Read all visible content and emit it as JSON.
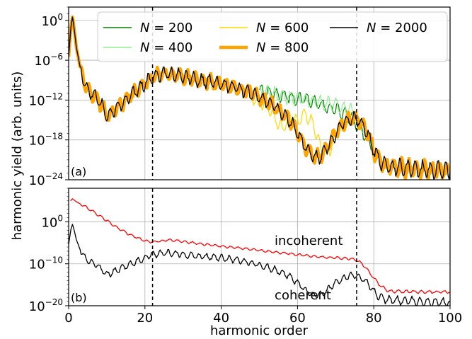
{
  "chart_data": [
    {
      "panel_label": "(a)",
      "type": "line",
      "yscale": "log",
      "xlim": [
        0,
        100
      ],
      "ylim_exponents": [
        -24,
        2
      ],
      "yticks": [
        {
          "exp": 0,
          "label": "10",
          "sup": "0"
        },
        {
          "exp": -6,
          "label": "10",
          "sup": "−6"
        },
        {
          "exp": -12,
          "label": "10",
          "sup": "−12"
        },
        {
          "exp": -18,
          "label": "10",
          "sup": "−18"
        },
        {
          "exp": -24,
          "label": "10",
          "sup": "−24"
        }
      ],
      "grid": true,
      "legend_position": "top-right",
      "vlines_x": [
        22,
        75.5
      ],
      "series": [
        {
          "name": "N = 200",
          "color": "#008000",
          "width": 1.2,
          "x": [
            50,
            54,
            58,
            62,
            66,
            70,
            74,
            78,
            80
          ],
          "log10_y": [
            -10.5,
            -11.0,
            -11.6,
            -11.8,
            -12.6,
            -13.5,
            -14.5,
            -17.5,
            -19.5
          ]
        },
        {
          "name": "N = 400",
          "color": "#90ee90",
          "width": 1.2,
          "x": [
            50,
            54,
            58,
            62,
            66,
            70,
            74,
            78
          ],
          "log10_y": [
            -10.6,
            -11.1,
            -11.7,
            -12.0,
            -12.4,
            -12.8,
            -13.5,
            -17
          ]
        },
        {
          "name": "N = 600",
          "color": "#ffd700",
          "width": 1.2,
          "x": [
            48,
            52,
            54,
            56,
            58,
            60,
            62,
            64,
            66,
            68,
            70,
            72,
            74
          ],
          "log10_y": [
            -11.5,
            -13.0,
            -14.5,
            -16.5,
            -14.5,
            -15.5,
            -14.0,
            -15.5,
            -19.0,
            -20.0,
            -17.5,
            -15.5,
            -14.5
          ]
        },
        {
          "name": "N = 800",
          "color": "#ffa500",
          "width": 4.5,
          "x": [
            0,
            0.6,
            1.0,
            1.4,
            2.0,
            3.0,
            4.0,
            5.0,
            7.0,
            9.0,
            10.0,
            12.0,
            14.0,
            16.0,
            18.0,
            20.0,
            22.0,
            24.0,
            26.0,
            30.0,
            34.0,
            40.0,
            46.0,
            50.0,
            54.0,
            58.0,
            60.0,
            62.0,
            64.0,
            66.0,
            68.0,
            70.0,
            72.0,
            74.0,
            76.0,
            78.0,
            80.0,
            82.0,
            84.0,
            88.0,
            92.0,
            96.0,
            100.0
          ],
          "log10_y": [
            -5.5,
            -1.0,
            0.5,
            -1.0,
            -4.0,
            -7.0,
            -9.0,
            -10.5,
            -11.5,
            -13.0,
            -14.5,
            -13.5,
            -12.5,
            -11.5,
            -10.5,
            -9.5,
            -8.5,
            -8.2,
            -8.0,
            -8.5,
            -9.0,
            -9.5,
            -10.5,
            -11.5,
            -13.0,
            -15.0,
            -17.0,
            -19.0,
            -20.5,
            -20.5,
            -19.0,
            -17.0,
            -15.5,
            -14.7,
            -15.0,
            -16.5,
            -19.5,
            -21.5,
            -22.0,
            -22.3,
            -22.5,
            -22.6,
            -22.6
          ]
        },
        {
          "name": "N = 2000",
          "color": "#000000",
          "width": 1.3,
          "x": [
            0,
            0.6,
            1.0,
            1.4,
            2.0,
            3.0,
            4.0,
            5.0,
            7.0,
            9.0,
            10.0,
            12.0,
            14.0,
            16.0,
            18.0,
            20.0,
            22.0,
            24.0,
            26.0,
            30.0,
            34.0,
            40.0,
            46.0,
            50.0,
            54.0,
            58.0,
            60.0,
            62.0,
            64.0,
            66.0,
            68.0,
            70.0,
            72.0,
            74.0,
            76.0,
            78.0,
            80.0,
            82.0,
            84.0,
            88.0,
            92.0,
            96.0,
            100.0
          ],
          "log10_y": [
            -5.5,
            -1.0,
            0.5,
            -1.0,
            -4.0,
            -7.0,
            -9.0,
            -10.5,
            -11.5,
            -13.0,
            -14.5,
            -13.5,
            -12.5,
            -11.5,
            -10.5,
            -9.5,
            -8.5,
            -8.2,
            -8.0,
            -8.5,
            -9.0,
            -9.5,
            -10.5,
            -11.5,
            -13.0,
            -15.0,
            -17.0,
            -19.0,
            -20.5,
            -20.5,
            -19.0,
            -17.0,
            -15.5,
            -14.7,
            -15.0,
            -16.5,
            -19.5,
            -21.5,
            -22.0,
            -22.3,
            -22.5,
            -22.6,
            -22.6
          ]
        }
      ]
    },
    {
      "panel_label": "(b)",
      "type": "line",
      "yscale": "log",
      "xlim": [
        0,
        100
      ],
      "ylim_exponents": [
        -20,
        8
      ],
      "yticks": [
        {
          "exp": 0,
          "label": "10",
          "sup": "0"
        },
        {
          "exp": -10,
          "label": "10",
          "sup": "−10"
        },
        {
          "exp": -20,
          "label": "10",
          "sup": "−20"
        }
      ],
      "xticks": [
        0,
        20,
        40,
        60,
        80,
        100
      ],
      "xlabel": "harmonic order",
      "grid": true,
      "vlines_x": [
        22,
        75.5
      ],
      "annotations": [
        {
          "text": "incoherent",
          "color": "#ff0000",
          "x": 54,
          "log10_y": -5.5
        },
        {
          "text": "coherent",
          "color": "#000000",
          "x": 54,
          "log10_y": -18.5
        }
      ],
      "series": [
        {
          "name": "incoherent",
          "color": "#ff0000",
          "width": 1.3,
          "x": [
            0.5,
            1,
            2,
            4,
            6,
            8,
            10,
            12,
            14,
            16,
            18,
            20,
            22,
            24,
            26,
            30,
            35,
            40,
            45,
            50,
            55,
            60,
            65,
            70,
            74,
            76,
            78,
            80,
            82,
            84,
            88,
            92,
            96,
            100
          ],
          "log10_y": [
            5.0,
            5.5,
            4.8,
            3.8,
            2.7,
            1.5,
            0.3,
            -1.0,
            -2.0,
            -3.0,
            -3.8,
            -4.5,
            -4.8,
            -4.6,
            -4.3,
            -4.7,
            -5.3,
            -5.8,
            -6.3,
            -6.8,
            -7.3,
            -7.8,
            -8.3,
            -8.6,
            -8.8,
            -9.3,
            -11.0,
            -13.5,
            -15.5,
            -16.5,
            -16.6,
            -16.7,
            -16.7,
            -16.7
          ]
        },
        {
          "name": "coherent",
          "color": "#000000",
          "width": 1.3,
          "x": [
            0,
            0.6,
            1.0,
            1.4,
            2.0,
            3.0,
            4.0,
            5.0,
            7.0,
            9.0,
            10.0,
            12.0,
            14.0,
            16.0,
            18.0,
            20.0,
            22.0,
            24.0,
            26.0,
            30.0,
            34.0,
            40.0,
            46.0,
            50.0,
            54.0,
            58.0,
            60.0,
            62.0,
            64.0,
            66.0,
            68.0,
            70.0,
            72.0,
            74.0,
            76.0,
            78.0,
            80.0,
            82.0,
            84.0,
            88.0,
            92.0,
            96.0,
            100.0
          ],
          "log10_y": [
            -5.5,
            -1.0,
            0.5,
            -1.0,
            -4.0,
            -7.0,
            -9.0,
            -10.5,
            -11.5,
            -13.0,
            -14.5,
            -13.5,
            -12.5,
            -11.5,
            -10.5,
            -9.5,
            -8.5,
            -8.2,
            -8.0,
            -8.5,
            -9.0,
            -9.5,
            -10.5,
            -11.5,
            -13.0,
            -15.0,
            -17.0,
            -19.0,
            -20.5,
            -20.5,
            -19.0,
            -17.0,
            -15.5,
            -14.7,
            -15.0,
            -16.5,
            -19.5,
            -21.5,
            -22.0,
            -22.3,
            -22.5,
            -22.6,
            -22.6
          ],
          "note_scale": "coherent curve rescaled for panel (b): log10_y_b = 0.8*log10_y_a - 1"
        }
      ]
    }
  ],
  "ylabel": "harmonic yield (arb. units)",
  "legend": {
    "entries": [
      {
        "sym": "N",
        "eq": " = 200",
        "color": "#008000",
        "width": 1.5
      },
      {
        "sym": "N",
        "eq": " = 400",
        "color": "#90ee90",
        "width": 1.5
      },
      {
        "sym": "N",
        "eq": " = 600",
        "color": "#ffd700",
        "width": 1.5
      },
      {
        "sym": "N",
        "eq": " = 800",
        "color": "#ffa500",
        "width": 4.5
      },
      {
        "sym": "N",
        "eq": " = 2000",
        "color": "#000000",
        "width": 1.5
      }
    ]
  }
}
